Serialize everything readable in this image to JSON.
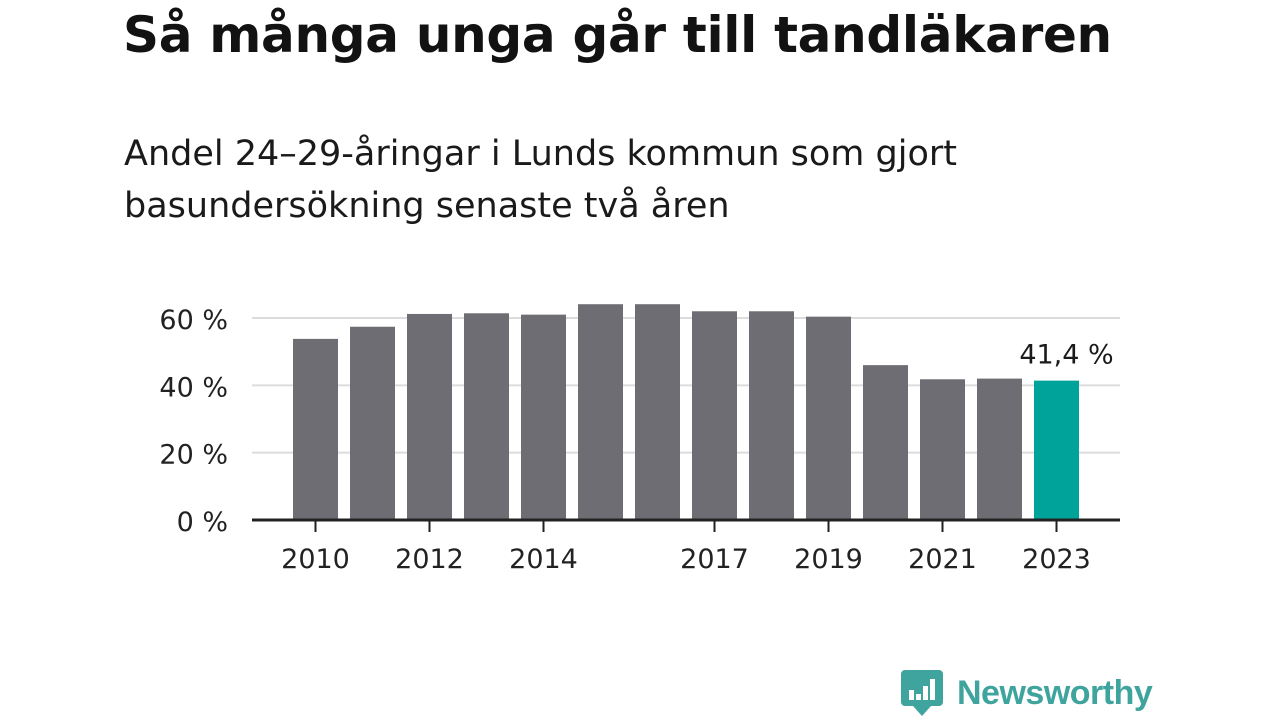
{
  "title": "Så många unga går till tandläkaren",
  "subtitle": "Andel 24–29-åringar i Lunds kommun som gjort basundersökning senaste två åren",
  "colors": {
    "bar": "#6e6d74",
    "highlight": "#00a39a",
    "grid": "#dcdcdc",
    "axis": "#222222"
  },
  "logo": {
    "text": "Newsworthy",
    "icon": "bar-chart-speech-bubble-icon"
  },
  "chart_data": {
    "type": "bar",
    "x": [
      2010,
      2011,
      2012,
      2013,
      2014,
      2015,
      2016,
      2017,
      2018,
      2019,
      2020,
      2021,
      2022,
      2023
    ],
    "values": [
      53.8,
      57.4,
      61.2,
      61.4,
      61.0,
      64.1,
      64.1,
      62.0,
      62.0,
      60.4,
      46.0,
      41.8,
      42.0,
      41.4
    ],
    "x_tick_labels": [
      "2010",
      "2012",
      "2014",
      "2017",
      "2019",
      "2021",
      "2023"
    ],
    "y_ticks": [
      0,
      20,
      40,
      60
    ],
    "y_tick_labels": [
      "0 %",
      "20 %",
      "40 %",
      "60 %"
    ],
    "ylim": [
      0,
      66
    ],
    "highlight": {
      "x": 2023,
      "label": "41,4 %"
    },
    "grid": true,
    "xlabel": "",
    "ylabel": ""
  }
}
